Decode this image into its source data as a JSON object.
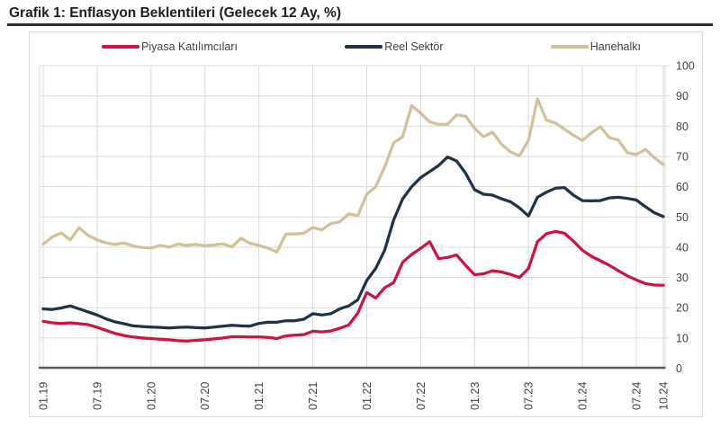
{
  "title": "Grafik 1: Enflasyon Beklentileri (Gelecek 12 Ay, %)",
  "style": {
    "grid_color": "#d9d9d9",
    "plot_border_color": "#d9d9d9",
    "axis_line_color": "#595959",
    "tick_label_color": "#404040",
    "legend_text_color": "#404040",
    "title_color": "#1e1e1e",
    "title_rule_color": "#2e2e2e",
    "background": "#ffffff"
  },
  "chart_data": {
    "type": "line",
    "title": "Grafik 1: Enflasyon Beklentileri (Gelecek 12 Ay, %)",
    "x_frequency": "monthly",
    "x_start": "01.19",
    "x_end": "10.24",
    "n_points": 70,
    "ylim": [
      0,
      100
    ],
    "y_ticks": [
      0,
      10,
      20,
      30,
      40,
      50,
      60,
      70,
      80,
      90,
      100
    ],
    "grid": true,
    "legend_position": "top",
    "x_ticks": [
      {
        "label": "01.19",
        "month": 0
      },
      {
        "label": "07.19",
        "month": 6
      },
      {
        "label": "01.20",
        "month": 12
      },
      {
        "label": "07.20",
        "month": 18
      },
      {
        "label": "01.21",
        "month": 24
      },
      {
        "label": "07.21",
        "month": 30
      },
      {
        "label": "01.22",
        "month": 36
      },
      {
        "label": "07.22",
        "month": 42
      },
      {
        "label": "01.23",
        "month": 48
      },
      {
        "label": "07.23",
        "month": 54
      },
      {
        "label": "01.24",
        "month": 60
      },
      {
        "label": "07.24",
        "month": 66
      },
      {
        "label": "10.24",
        "month": 69
      }
    ],
    "series": [
      {
        "name": "Piyasa Katılımcıları",
        "color": "#d01243",
        "values": [
          15.5,
          15.0,
          14.8,
          15.0,
          14.7,
          14.4,
          13.5,
          12.5,
          11.5,
          10.8,
          10.3,
          10.0,
          9.8,
          9.6,
          9.4,
          9.1,
          9.0,
          9.2,
          9.4,
          9.7,
          10.0,
          10.4,
          10.4,
          10.3,
          10.3,
          10.2,
          9.8,
          10.7,
          10.9,
          11.1,
          12.2,
          12.0,
          12.3,
          13.2,
          14.3,
          18.2,
          25.0,
          23.2,
          26.6,
          28.3,
          35.0,
          37.6,
          39.6,
          41.8,
          36.2,
          36.6,
          37.4,
          34.0,
          30.9,
          31.2,
          32.2,
          31.8,
          31.0,
          30.0,
          33.0,
          41.8,
          44.5,
          45.2,
          44.6,
          42.0,
          39.0,
          37.0,
          35.5,
          34.0,
          32.2,
          30.5,
          29.2,
          28.0,
          27.5,
          27.4
        ]
      },
      {
        "name": "Reel Sektör",
        "color": "#1d3349",
        "values": [
          19.6,
          19.4,
          19.9,
          20.6,
          19.6,
          18.6,
          17.6,
          16.3,
          15.3,
          14.7,
          14.0,
          13.8,
          13.6,
          13.5,
          13.3,
          13.5,
          13.6,
          13.4,
          13.3,
          13.6,
          13.9,
          14.2,
          14.0,
          13.9,
          14.8,
          15.2,
          15.2,
          15.7,
          15.7,
          16.2,
          18.0,
          17.6,
          18.0,
          19.6,
          20.6,
          22.6,
          29.0,
          33.0,
          39.0,
          49.0,
          56.0,
          60.0,
          63.0,
          65.0,
          67.0,
          69.8,
          68.5,
          64.5,
          59.0,
          57.5,
          57.2,
          56.0,
          55.0,
          53.0,
          50.3,
          56.5,
          58.2,
          59.5,
          59.7,
          57.2,
          55.4,
          55.3,
          55.4,
          56.3,
          56.5,
          56.1,
          55.6,
          53.4,
          51.4,
          50.1
        ]
      },
      {
        "name": "Hanehalkı",
        "color": "#d3c096",
        "values": [
          41.0,
          43.4,
          44.7,
          42.4,
          46.4,
          43.9,
          42.4,
          41.4,
          40.9,
          41.4,
          40.4,
          39.9,
          39.7,
          40.6,
          40.0,
          41.0,
          40.6,
          40.9,
          40.5,
          40.7,
          41.1,
          40.1,
          42.9,
          41.3,
          40.6,
          39.7,
          38.4,
          44.3,
          44.4,
          44.6,
          46.5,
          45.7,
          47.8,
          48.4,
          51.0,
          50.4,
          57.5,
          60.0,
          66.5,
          74.5,
          76.5,
          86.8,
          84.3,
          81.4,
          80.6,
          80.6,
          83.7,
          83.3,
          79.3,
          76.5,
          78.0,
          74.0,
          71.5,
          70.2,
          75.3,
          89.0,
          82.0,
          81.0,
          79.0,
          77.0,
          75.3,
          77.8,
          79.8,
          76.2,
          75.4,
          71.2,
          70.6,
          72.3,
          69.6,
          67.3
        ]
      }
    ]
  }
}
